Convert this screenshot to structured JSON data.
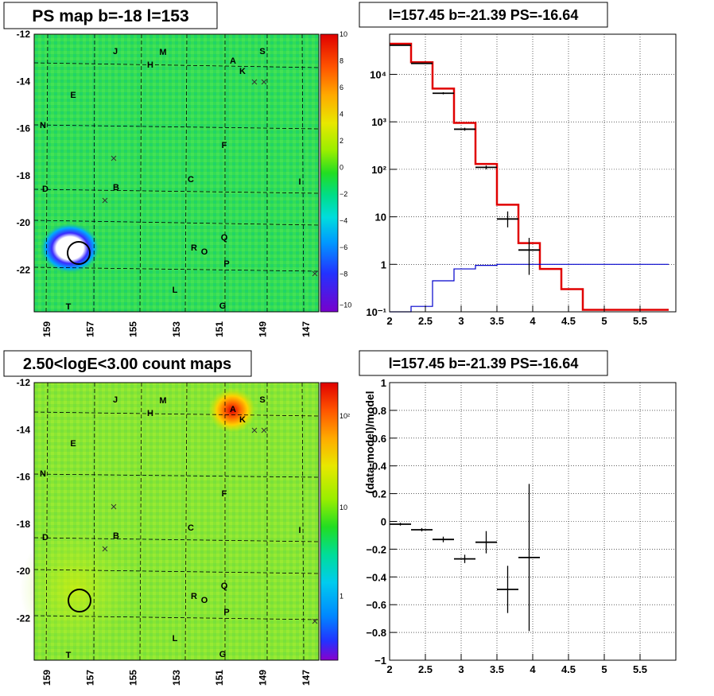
{
  "map_top": {
    "title": "PS map b=-18 l=153",
    "y_ticks": [
      "-12",
      "-14",
      "-16",
      "-18",
      "-20",
      "-22"
    ],
    "x_ticks": [
      "159",
      "157",
      "155",
      "153",
      "151",
      "149",
      "147"
    ],
    "colorbar_ticks": [
      "10",
      "8",
      "6",
      "4",
      "2",
      "0",
      "−2",
      "−4",
      "−6",
      "−8",
      "−10"
    ],
    "letters": [
      "J",
      "M",
      "H",
      "A",
      "S",
      "K",
      "E",
      "N",
      "F",
      "D",
      "B",
      "C",
      "I",
      "Q",
      "R",
      "O",
      "P",
      "L",
      "T",
      "G"
    ]
  },
  "map_bottom": {
    "title": "2.50<logE<3.00 count maps",
    "y_ticks": [
      "-12",
      "-14",
      "-16",
      "-18",
      "-20",
      "-22"
    ],
    "x_ticks": [
      "159",
      "157",
      "155",
      "153",
      "151",
      "149",
      "147"
    ],
    "colorbar_ticks": [
      "10²",
      "10",
      "1"
    ],
    "letters": [
      "J",
      "M",
      "H",
      "A",
      "S",
      "K",
      "E",
      "N",
      "F",
      "D",
      "B",
      "C",
      "I",
      "Q",
      "R",
      "O",
      "P",
      "L",
      "T",
      "G"
    ]
  },
  "chart_data": [
    {
      "type": "line",
      "title": "l=157.45 b=-21.39 PS=-16.64",
      "xlabel": "",
      "ylabel": "",
      "xlim": [
        2,
        6
      ],
      "ylim": [
        0.1,
        70000
      ],
      "yscale": "log",
      "grid": true,
      "x_tick_labels": [
        "2",
        "2.5",
        "3",
        "3.5",
        "4",
        "4.5",
        "5",
        "5.5"
      ],
      "y_tick_labels": [
        "10⁻¹",
        "1",
        "10",
        "10²",
        "10³",
        "10⁴"
      ],
      "series": [
        {
          "color": "#e00000",
          "style": "step",
          "edges": [
            2.0,
            2.3,
            2.6,
            2.9,
            3.2,
            3.5,
            3.8,
            4.1,
            4.4,
            4.7,
            5.0,
            5.3,
            5.6,
            5.9
          ],
          "values": [
            44000,
            18000,
            5000,
            950,
            130,
            18,
            2.8,
            0.8,
            0.3,
            0.11,
            0.11,
            0.11,
            0.11
          ]
        },
        {
          "color": "#0000cc",
          "style": "step",
          "edges": [
            2.0,
            2.3,
            2.6,
            2.9,
            3.2,
            3.5,
            3.8,
            4.1,
            4.4,
            4.7,
            5.0,
            5.3,
            5.6,
            5.9
          ],
          "values": [
            0.1,
            0.13,
            0.45,
            0.8,
            0.95,
            1,
            1,
            1,
            1,
            1,
            1,
            1,
            1
          ]
        },
        {
          "color": "#000000",
          "style": "errorbar",
          "points": [
            {
              "x": 2.15,
              "y": 41000,
              "xerr": 0.15,
              "ylo": 40000,
              "yhi": 42000
            },
            {
              "x": 2.45,
              "y": 17000,
              "xerr": 0.15,
              "ylo": 16500,
              "yhi": 17500
            },
            {
              "x": 2.75,
              "y": 4000,
              "xerr": 0.15,
              "ylo": 3800,
              "yhi": 4200
            },
            {
              "x": 3.05,
              "y": 700,
              "xerr": 0.15,
              "ylo": 650,
              "yhi": 750
            },
            {
              "x": 3.35,
              "y": 110,
              "xerr": 0.15,
              "ylo": 100,
              "yhi": 120
            },
            {
              "x": 3.65,
              "y": 9,
              "xerr": 0.15,
              "ylo": 6,
              "yhi": 13
            },
            {
              "x": 3.95,
              "y": 2,
              "xerr": 0.15,
              "ylo": 0.6,
              "yhi": 3.6
            }
          ]
        }
      ]
    },
    {
      "type": "scatter",
      "title": "l=157.45 b=-21.39 PS=-16.64",
      "xlabel": "",
      "ylabel": "(data-model)/model",
      "xlim": [
        2,
        6
      ],
      "ylim": [
        -1,
        1
      ],
      "grid": true,
      "x_tick_labels": [
        "2",
        "2.5",
        "3",
        "3.5",
        "4",
        "4.5",
        "5",
        "5.5"
      ],
      "y_tick_labels": [
        "1",
        "0.8",
        "0.6",
        "0.4",
        "0.2",
        "0",
        "−0.2",
        "−0.4",
        "−0.6",
        "−0.8",
        "−1"
      ],
      "series": [
        {
          "color": "#000000",
          "style": "errorbar",
          "points": [
            {
              "x": 2.15,
              "y": -0.02,
              "xerr": 0.15,
              "yerr": 0.01
            },
            {
              "x": 2.45,
              "y": -0.06,
              "xerr": 0.15,
              "yerr": 0.012
            },
            {
              "x": 2.75,
              "y": -0.13,
              "xerr": 0.15,
              "yerr": 0.02
            },
            {
              "x": 3.05,
              "y": -0.27,
              "xerr": 0.15,
              "yerr": 0.03
            },
            {
              "x": 3.35,
              "y": -0.15,
              "xerr": 0.15,
              "yerr": 0.08
            },
            {
              "x": 3.65,
              "y": -0.49,
              "xerr": 0.15,
              "yerr": 0.17
            },
            {
              "x": 3.95,
              "y": -0.26,
              "xerr": 0.15,
              "yerr": 0.53
            }
          ]
        }
      ]
    }
  ]
}
